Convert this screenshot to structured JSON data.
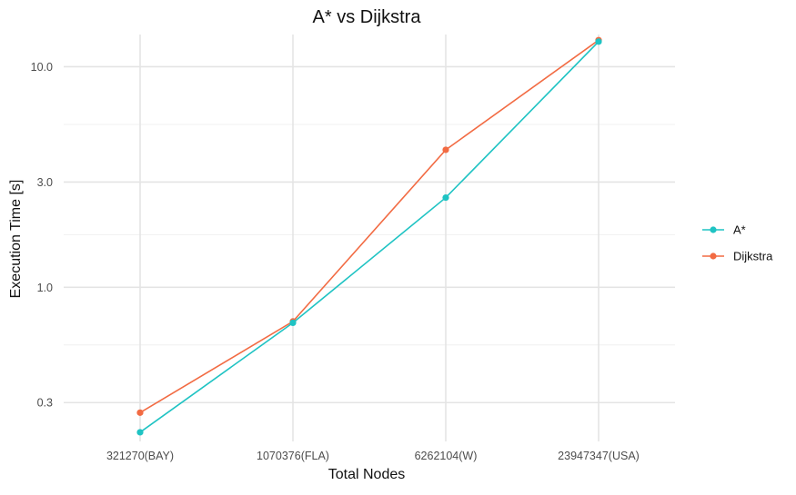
{
  "chart_data": {
    "type": "line",
    "title": "A* vs Dijkstra",
    "xlabel": "Total Nodes",
    "ylabel": "Execution Time [s]",
    "y_scale": "log10",
    "ylim": [
      0.2,
      14
    ],
    "grid": true,
    "legend_position": "right",
    "categories": [
      "321270(BAY)",
      "1070376(FLA)",
      "6262104(W)",
      "23947347(USA)"
    ],
    "y_ticks": [
      {
        "value": 0.3,
        "label": "0.3"
      },
      {
        "value": 1.0,
        "label": "1.0"
      },
      {
        "value": 3.0,
        "label": "3.0"
      },
      {
        "value": 10.0,
        "label": "10.0"
      }
    ],
    "series": [
      {
        "name": "A*",
        "color": "#1fc3c3",
        "values": [
          0.22,
          0.69,
          2.55,
          13.0
        ]
      },
      {
        "name": "Dijkstra",
        "color": "#f26b43",
        "values": [
          0.27,
          0.7,
          4.2,
          13.2
        ]
      }
    ]
  }
}
